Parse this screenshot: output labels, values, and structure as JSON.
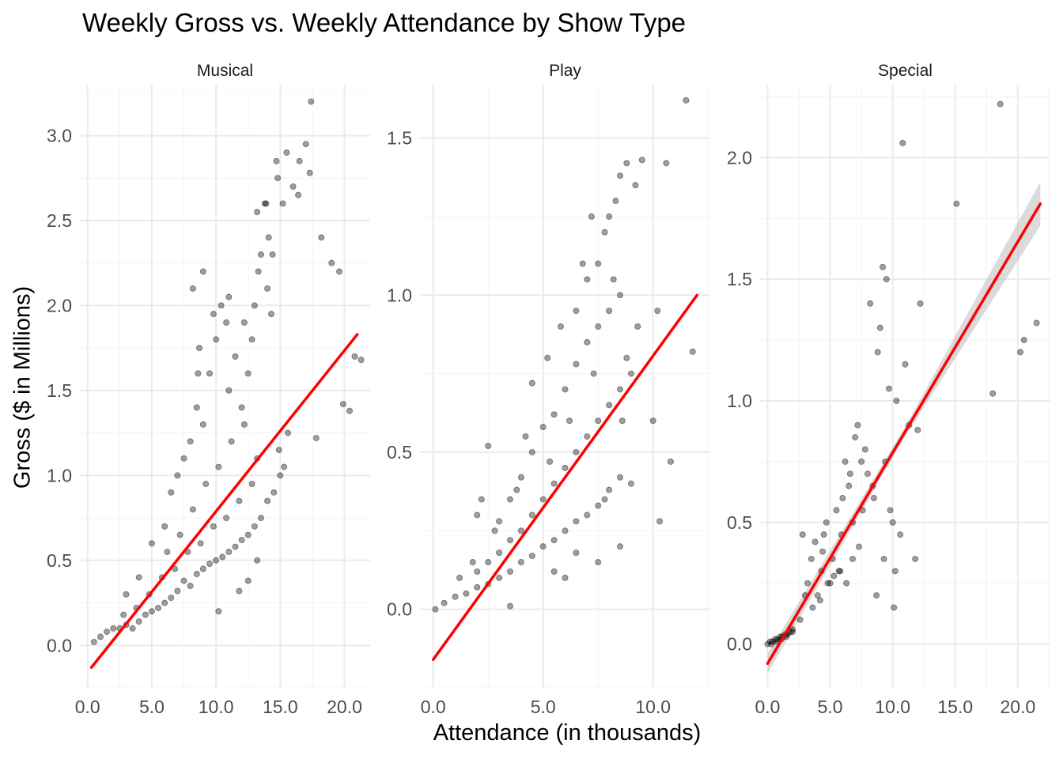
{
  "chart_data": {
    "type": "scatter",
    "title": "Weekly Gross vs. Weekly Attendance by Show Type",
    "xlabel": "Attendance (in thousands)",
    "ylabel": "Gross ($ in Millions)",
    "colors": {
      "points": "#000000",
      "fit_line": "#ff0000",
      "confidence_band": "#bebebe",
      "grid": "#ebebeb"
    },
    "panels": [
      {
        "name": "Musical",
        "xlim": [
          -0.6,
          22.0
        ],
        "ylim": [
          -0.25,
          3.3
        ],
        "x_ticks": [
          "0.0",
          "5.0",
          "10.0",
          "15.0",
          "20.0"
        ],
        "y_ticks": [
          "0.0",
          "0.5",
          "1.0",
          "1.5",
          "2.0",
          "2.5",
          "3.0"
        ],
        "fit_line": [
          [
            0.3,
            -0.13
          ],
          [
            21.0,
            1.83
          ]
        ],
        "points": [
          [
            0.5,
            0.02
          ],
          [
            1.0,
            0.05
          ],
          [
            1.5,
            0.08
          ],
          [
            2.0,
            0.1
          ],
          [
            2.5,
            0.1
          ],
          [
            3.0,
            0.12
          ],
          [
            3.5,
            0.1
          ],
          [
            4.0,
            0.14
          ],
          [
            4.5,
            0.18
          ],
          [
            5.0,
            0.2
          ],
          [
            5.5,
            0.22
          ],
          [
            6.0,
            0.25
          ],
          [
            6.5,
            0.28
          ],
          [
            7.0,
            0.32
          ],
          [
            7.5,
            0.38
          ],
          [
            8.0,
            0.35
          ],
          [
            8.5,
            0.42
          ],
          [
            9.0,
            0.45
          ],
          [
            9.5,
            0.48
          ],
          [
            10.0,
            0.5
          ],
          [
            10.5,
            0.52
          ],
          [
            11.0,
            0.55
          ],
          [
            11.5,
            0.58
          ],
          [
            12.0,
            0.62
          ],
          [
            12.5,
            0.65
          ],
          [
            13.0,
            0.7
          ],
          [
            13.5,
            0.75
          ],
          [
            14.0,
            0.85
          ],
          [
            14.5,
            0.9
          ],
          [
            15.0,
            1.0
          ],
          [
            3.0,
            0.3
          ],
          [
            4.0,
            0.4
          ],
          [
            5.0,
            0.6
          ],
          [
            6.0,
            0.7
          ],
          [
            6.5,
            0.9
          ],
          [
            7.0,
            1.0
          ],
          [
            7.5,
            1.1
          ],
          [
            8.0,
            1.2
          ],
          [
            8.5,
            1.4
          ],
          [
            8.6,
            1.6
          ],
          [
            8.7,
            1.75
          ],
          [
            9.0,
            1.3
          ],
          [
            9.5,
            1.6
          ],
          [
            10.0,
            1.8
          ],
          [
            10.4,
            2.0
          ],
          [
            10.8,
            1.9
          ],
          [
            11.0,
            1.5
          ],
          [
            11.5,
            1.7
          ],
          [
            12.0,
            1.4
          ],
          [
            12.5,
            1.6
          ],
          [
            12.8,
            1.8
          ],
          [
            13.0,
            2.0
          ],
          [
            13.3,
            2.2
          ],
          [
            13.5,
            2.3
          ],
          [
            13.9,
            2.6
          ],
          [
            14.1,
            2.4
          ],
          [
            14.4,
            2.3
          ],
          [
            14.7,
            2.85
          ],
          [
            15.2,
            2.6
          ],
          [
            15.5,
            2.9
          ],
          [
            16.0,
            2.7
          ],
          [
            16.5,
            2.85
          ],
          [
            17.0,
            2.95
          ],
          [
            17.4,
            3.2
          ],
          [
            17.3,
            2.78
          ],
          [
            16.4,
            2.65
          ],
          [
            14.8,
            2.75
          ],
          [
            13.2,
            2.55
          ],
          [
            18.2,
            2.4
          ],
          [
            19.0,
            2.25
          ],
          [
            19.6,
            2.2
          ],
          [
            20.8,
            1.7
          ],
          [
            21.3,
            1.68
          ],
          [
            19.9,
            1.42
          ],
          [
            20.4,
            1.38
          ],
          [
            17.8,
            1.22
          ],
          [
            15.6,
            1.25
          ],
          [
            14.9,
            1.15
          ],
          [
            15.3,
            1.05
          ],
          [
            6.2,
            0.55
          ],
          [
            7.2,
            0.65
          ],
          [
            8.2,
            0.8
          ],
          [
            9.2,
            0.95
          ],
          [
            10.2,
            1.05
          ],
          [
            11.2,
            1.2
          ],
          [
            12.2,
            1.3
          ],
          [
            13.2,
            1.1
          ],
          [
            12.8,
            0.95
          ],
          [
            11.8,
            0.85
          ],
          [
            10.8,
            0.75
          ],
          [
            9.8,
            0.7
          ],
          [
            8.8,
            0.6
          ],
          [
            7.8,
            0.55
          ],
          [
            6.8,
            0.45
          ],
          [
            5.8,
            0.4
          ],
          [
            4.8,
            0.3
          ],
          [
            3.8,
            0.22
          ],
          [
            2.8,
            0.18
          ],
          [
            10.2,
            0.2
          ],
          [
            11.8,
            0.32
          ],
          [
            12.5,
            0.38
          ],
          [
            13.2,
            0.5
          ],
          [
            9.0,
            2.2
          ],
          [
            8.2,
            2.1
          ],
          [
            9.8,
            1.95
          ],
          [
            11.0,
            2.05
          ],
          [
            12.2,
            1.9
          ],
          [
            14.0,
            2.1
          ],
          [
            14.3,
            1.95
          ],
          [
            13.8,
            2.6
          ]
        ]
      },
      {
        "name": "Play",
        "xlim": [
          -0.6,
          12.6
        ],
        "ylim": [
          -0.25,
          1.67
        ],
        "x_ticks": [
          "0.0",
          "5.0",
          "10.0"
        ],
        "y_ticks": [
          "0.0",
          "0.5",
          "1.0",
          "1.5"
        ],
        "fit_line": [
          [
            0.0,
            -0.16
          ],
          [
            12.0,
            1.0
          ]
        ],
        "points": [
          [
            0.1,
            0.0
          ],
          [
            0.5,
            0.02
          ],
          [
            1.0,
            0.04
          ],
          [
            1.5,
            0.05
          ],
          [
            2.0,
            0.07
          ],
          [
            2.5,
            0.08
          ],
          [
            3.0,
            0.1
          ],
          [
            3.5,
            0.12
          ],
          [
            4.0,
            0.15
          ],
          [
            4.5,
            0.17
          ],
          [
            5.0,
            0.2
          ],
          [
            5.5,
            0.22
          ],
          [
            6.0,
            0.25
          ],
          [
            6.5,
            0.28
          ],
          [
            7.0,
            0.3
          ],
          [
            7.5,
            0.33
          ],
          [
            8.0,
            0.38
          ],
          [
            8.5,
            0.42
          ],
          [
            2.0,
            0.12
          ],
          [
            2.5,
            0.15
          ],
          [
            3.0,
            0.18
          ],
          [
            3.5,
            0.22
          ],
          [
            4.0,
            0.25
          ],
          [
            4.5,
            0.3
          ],
          [
            5.0,
            0.35
          ],
          [
            5.5,
            0.4
          ],
          [
            6.0,
            0.45
          ],
          [
            6.5,
            0.5
          ],
          [
            7.0,
            0.55
          ],
          [
            7.5,
            0.6
          ],
          [
            8.0,
            0.65
          ],
          [
            8.5,
            0.7
          ],
          [
            9.0,
            0.75
          ],
          [
            3.0,
            0.28
          ],
          [
            3.5,
            0.35
          ],
          [
            4.0,
            0.42
          ],
          [
            4.5,
            0.5
          ],
          [
            5.0,
            0.58
          ],
          [
            5.5,
            0.62
          ],
          [
            6.0,
            0.7
          ],
          [
            6.5,
            0.78
          ],
          [
            7.0,
            0.85
          ],
          [
            7.5,
            0.9
          ],
          [
            8.0,
            0.95
          ],
          [
            8.5,
            1.0
          ],
          [
            6.5,
            0.95
          ],
          [
            7.0,
            1.05
          ],
          [
            7.5,
            1.1
          ],
          [
            7.8,
            1.2
          ],
          [
            8.0,
            1.25
          ],
          [
            8.3,
            1.3
          ],
          [
            8.5,
            1.38
          ],
          [
            9.2,
            1.35
          ],
          [
            9.5,
            1.43
          ],
          [
            8.8,
            1.42
          ],
          [
            10.2,
            0.95
          ],
          [
            10.6,
            1.42
          ],
          [
            11.5,
            1.62
          ],
          [
            11.8,
            0.82
          ],
          [
            10.0,
            0.6
          ],
          [
            10.8,
            0.47
          ],
          [
            10.3,
            0.28
          ],
          [
            9.0,
            0.4
          ],
          [
            8.5,
            0.2
          ],
          [
            7.5,
            0.15
          ],
          [
            6.0,
            0.1
          ],
          [
            3.5,
            0.01
          ],
          [
            2.5,
            0.52
          ],
          [
            2.2,
            0.35
          ],
          [
            2.0,
            0.3
          ],
          [
            4.5,
            0.72
          ],
          [
            5.2,
            0.8
          ],
          [
            5.8,
            0.9
          ],
          [
            6.8,
            1.1
          ],
          [
            7.2,
            1.25
          ],
          [
            5.5,
            0.12
          ],
          [
            6.5,
            0.18
          ],
          [
            7.8,
            0.35
          ],
          [
            8.8,
            0.8
          ],
          [
            9.3,
            0.9
          ],
          [
            4.2,
            0.55
          ],
          [
            3.8,
            0.38
          ],
          [
            2.8,
            0.25
          ],
          [
            1.8,
            0.15
          ],
          [
            1.2,
            0.1
          ],
          [
            8.2,
            1.05
          ],
          [
            8.6,
            0.6
          ],
          [
            7.3,
            0.75
          ],
          [
            6.2,
            0.6
          ],
          [
            5.3,
            0.47
          ]
        ]
      },
      {
        "name": "Special",
        "xlim": [
          -0.6,
          22.6
        ],
        "ylim": [
          -0.18,
          2.3
        ],
        "x_ticks": [
          "0.0",
          "5.0",
          "10.0",
          "15.0",
          "20.0"
        ],
        "y_ticks": [
          "0.0",
          "0.5",
          "1.0",
          "1.5",
          "2.0"
        ],
        "fit_line": [
          [
            0.0,
            -0.08
          ],
          [
            21.8,
            1.81
          ]
        ],
        "band_halfwidth": [
          [
            0.0,
            0.04
          ],
          [
            11.0,
            0.02
          ],
          [
            21.8,
            0.09
          ]
        ],
        "points": [
          [
            0.0,
            0.0
          ],
          [
            0.2,
            0.01
          ],
          [
            0.4,
            0.01
          ],
          [
            0.6,
            0.02
          ],
          [
            0.8,
            0.02
          ],
          [
            1.0,
            0.03
          ],
          [
            1.2,
            0.03
          ],
          [
            1.4,
            0.04
          ],
          [
            1.6,
            0.04
          ],
          [
            1.8,
            0.05
          ],
          [
            2.0,
            0.05
          ],
          [
            0.3,
            0.0
          ],
          [
            0.7,
            0.01
          ],
          [
            1.1,
            0.02
          ],
          [
            1.5,
            0.03
          ],
          [
            2.0,
            0.06
          ],
          [
            2.6,
            0.1
          ],
          [
            3.0,
            0.2
          ],
          [
            2.8,
            0.45
          ],
          [
            3.2,
            0.25
          ],
          [
            3.5,
            0.35
          ],
          [
            3.8,
            0.42
          ],
          [
            4.0,
            0.2
          ],
          [
            4.3,
            0.3
          ],
          [
            4.5,
            0.45
          ],
          [
            4.7,
            0.5
          ],
          [
            5.0,
            0.25
          ],
          [
            5.2,
            0.35
          ],
          [
            5.5,
            0.55
          ],
          [
            5.8,
            0.3
          ],
          [
            6.0,
            0.6
          ],
          [
            6.2,
            0.75
          ],
          [
            6.5,
            0.65
          ],
          [
            6.8,
            0.5
          ],
          [
            7.0,
            0.85
          ],
          [
            7.2,
            0.9
          ],
          [
            7.5,
            0.75
          ],
          [
            7.8,
            0.8
          ],
          [
            8.0,
            0.7
          ],
          [
            8.2,
            1.4
          ],
          [
            8.5,
            0.6
          ],
          [
            8.8,
            1.2
          ],
          [
            9.0,
            1.3
          ],
          [
            9.2,
            1.55
          ],
          [
            9.5,
            1.5
          ],
          [
            9.7,
            1.05
          ],
          [
            9.8,
            0.55
          ],
          [
            10.0,
            0.5
          ],
          [
            10.3,
            1.0
          ],
          [
            10.6,
            0.45
          ],
          [
            10.8,
            2.06
          ],
          [
            11.0,
            1.15
          ],
          [
            11.3,
            0.9
          ],
          [
            11.8,
            0.35
          ],
          [
            12.0,
            0.88
          ],
          [
            12.2,
            1.4
          ],
          [
            15.1,
            1.81
          ],
          [
            18.0,
            1.03
          ],
          [
            18.6,
            2.22
          ],
          [
            20.2,
            1.2
          ],
          [
            20.5,
            1.25
          ],
          [
            21.5,
            1.32
          ],
          [
            4.8,
            0.25
          ],
          [
            5.3,
            0.28
          ],
          [
            5.7,
            0.3
          ],
          [
            6.3,
            0.25
          ],
          [
            4.2,
            0.18
          ],
          [
            3.6,
            0.15
          ],
          [
            6.8,
            0.35
          ],
          [
            7.3,
            0.4
          ],
          [
            8.7,
            0.2
          ],
          [
            9.3,
            0.35
          ],
          [
            10.2,
            0.3
          ],
          [
            5.9,
            0.45
          ],
          [
            4.4,
            0.38
          ],
          [
            6.6,
            0.7
          ],
          [
            7.6,
            0.55
          ],
          [
            8.4,
            0.65
          ],
          [
            9.4,
            0.75
          ],
          [
            10.1,
            0.15
          ]
        ]
      }
    ]
  }
}
